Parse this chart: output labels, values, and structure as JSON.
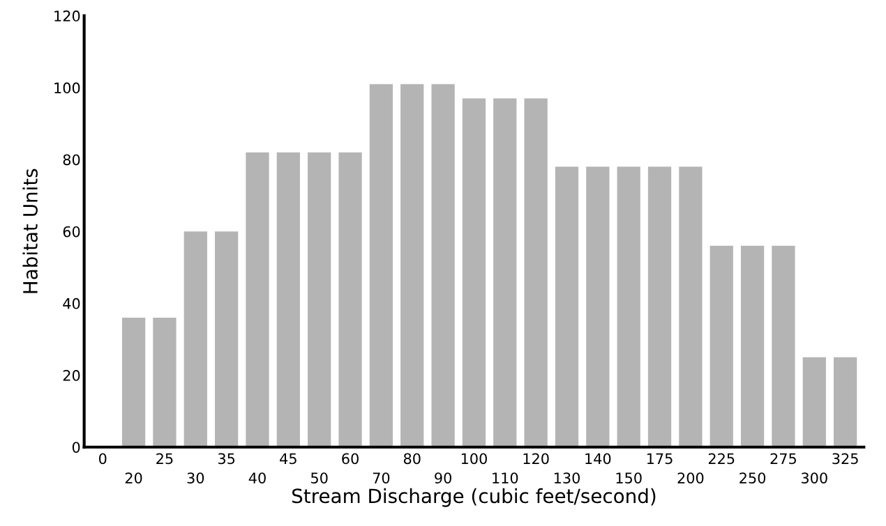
{
  "chart_data": {
    "type": "bar",
    "xlabel": "Stream Discharge (cubic feet/second)",
    "ylabel": "Habitat Units",
    "categories": [
      "0",
      "20",
      "25",
      "30",
      "35",
      "40",
      "45",
      "50",
      "60",
      "70",
      "80",
      "90",
      "100",
      "110",
      "120",
      "130",
      "140",
      "150",
      "175",
      "200",
      "225",
      "250",
      "275",
      "300",
      "325"
    ],
    "values": [
      0,
      36,
      36,
      60,
      60,
      82,
      82,
      82,
      82,
      101,
      101,
      101,
      97,
      97,
      97,
      78,
      78,
      78,
      78,
      78,
      56,
      56,
      56,
      25,
      25
    ],
    "color": "#b4b4b4",
    "ylim": [
      0,
      120
    ],
    "yticks": [
      0,
      20,
      40,
      60,
      80,
      100,
      120
    ],
    "grid": false
  }
}
